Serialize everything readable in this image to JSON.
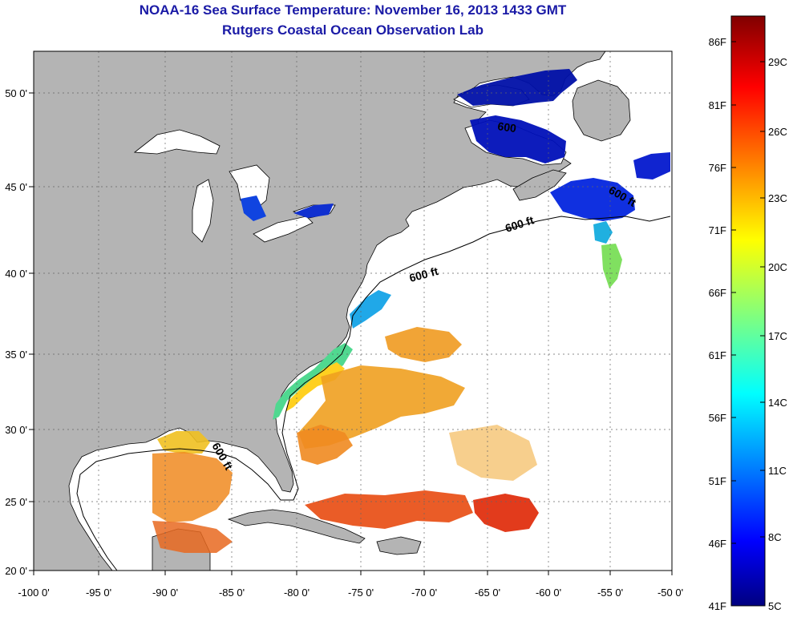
{
  "title": "NOAA-16 Sea Surface Temperature:  November 16, 2013 1433 GMT",
  "subtitle": "Rutgers Coastal Ocean Observation Lab",
  "map": {
    "lon_ticks": [
      "-100 0'",
      "-95 0'",
      "-90 0'",
      "-85 0'",
      "-80 0'",
      "-75 0'",
      "-70 0'",
      "-65 0'",
      "-60 0'",
      "-55 0'",
      "-50 0'"
    ],
    "lat_ticks": [
      "50 0'",
      "45 0'",
      "40 0'",
      "35 0'",
      "30 0'",
      "25 0'",
      "20 0'"
    ],
    "contour_label": "600 ft",
    "contour_label_cut": "600",
    "land_color": "#b4b4b4",
    "ocean_color": "#ffffff",
    "grid": true
  },
  "colorbar": {
    "fahrenheit": [
      "86F",
      "81F",
      "76F",
      "71F",
      "66F",
      "61F",
      "56F",
      "51F",
      "46F",
      "41F"
    ],
    "celsius": [
      "29C",
      "26C",
      "23C",
      "20C",
      "17C",
      "14C",
      "11C",
      "8C",
      "5C"
    ],
    "colormap": [
      "#000080",
      "#0000ff",
      "#00ffff",
      "#ffff00",
      "#ff0000",
      "#800000"
    ]
  }
}
